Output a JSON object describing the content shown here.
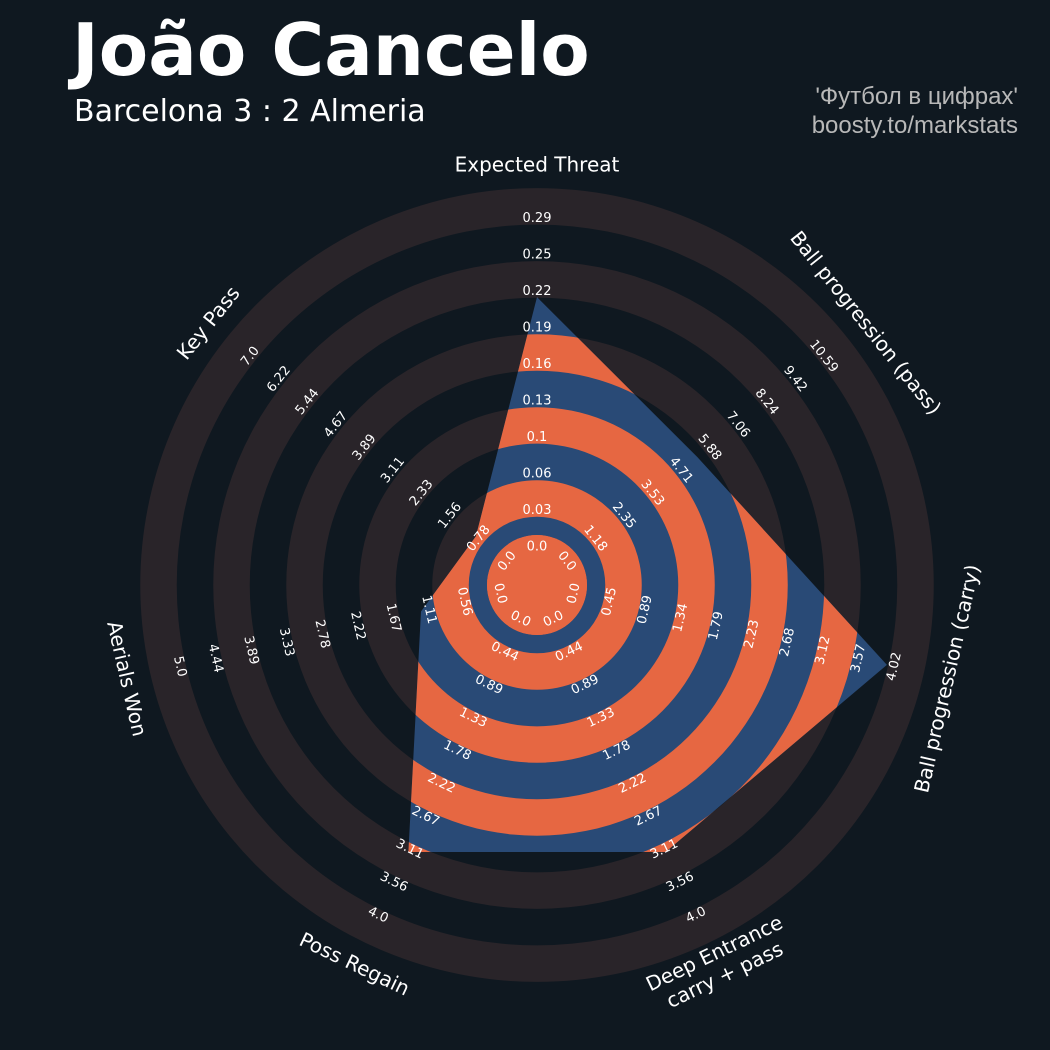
{
  "header": {
    "title": "João Cancelo",
    "subtitle": "Barcelona 3 : 2 Almeria",
    "credit_line1": "'Футбол в цифрах'",
    "credit_line2": "boosty.to/markstats"
  },
  "colors": {
    "background": "#0f1820",
    "ring_band": "#292429",
    "player_fill": "#294a76",
    "orange": "#e66742",
    "text": "#ffffff"
  },
  "chart_data": {
    "type": "radar",
    "title": "João Cancelo",
    "params": [
      "Expected Threat",
      "Ball progression (pass)",
      "Ball progression (carry)",
      "Deep Entrance\ncarry + pass",
      "Poss Regain",
      "Aerials Won",
      "Key Pass"
    ],
    "ranges": [
      [
        0.0,
        0.29
      ],
      [
        0.0,
        10.59
      ],
      [
        0.0,
        4.02
      ],
      [
        0.0,
        4.0
      ],
      [
        0.0,
        4.0
      ],
      [
        0.0,
        5.0
      ],
      [
        0.0,
        7.0
      ]
    ],
    "values": [
      0.21,
      5.0,
      3.78,
      3.0,
      3.0,
      1.05,
      0.6
    ],
    "tick_labels": [
      [
        "0.0",
        "0.03",
        "0.06",
        "0.1",
        "0.13",
        "0.16",
        "0.19",
        "0.22",
        "0.25",
        "0.29"
      ],
      [
        "0.0",
        "1.18",
        "2.35",
        "3.53",
        "4.71",
        "5.88",
        "7.06",
        "8.24",
        "9.42",
        "10.59"
      ],
      [
        "0.0",
        "0.45",
        "0.89",
        "1.34",
        "1.79",
        "2.23",
        "2.68",
        "3.12",
        "3.57",
        "4.02"
      ],
      [
        "0.0",
        "0.44",
        "0.89",
        "1.33",
        "1.78",
        "2.22",
        "2.67",
        "3.11",
        "3.56",
        "4.0"
      ],
      [
        "0.0",
        "0.44",
        "0.89",
        "1.33",
        "1.78",
        "2.22",
        "2.67",
        "3.11",
        "3.56",
        "4.0"
      ],
      [
        "0.0",
        "0.56",
        "1.11",
        "1.67",
        "2.22",
        "2.78",
        "3.33",
        "3.89",
        "4.44",
        "5.0"
      ],
      [
        "0.0",
        "0.78",
        "1.56",
        "2.33",
        "3.11",
        "3.89",
        "4.67",
        "5.44",
        "6.22",
        "7.0"
      ]
    ]
  }
}
